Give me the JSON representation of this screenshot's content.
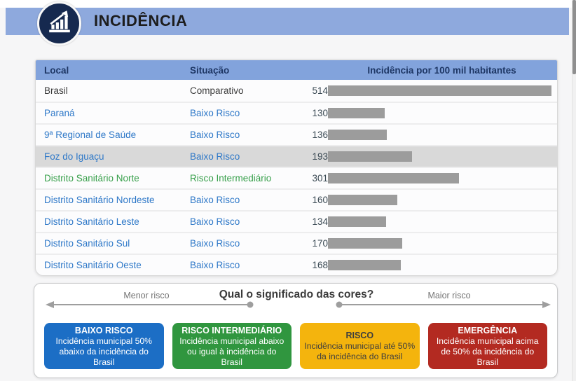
{
  "header": {
    "title": "INCIDÊNCIA",
    "icon": "bar-chart-growth-icon"
  },
  "colors": {
    "banner": "#8EA9DD",
    "table_header_bg": "#82A3DC",
    "table_header_text": "#1E3765",
    "bar": "#9C9C9C",
    "highlight_row": "#D9D9D9",
    "link_blue": "#2E78C8",
    "status_green": "#38A04B"
  },
  "table": {
    "columns": [
      "Local",
      "Situação",
      "Incidência por 100 mil habitantes"
    ],
    "max_value": 514,
    "rows": [
      {
        "local": "Brasil",
        "situacao": "Comparativo",
        "value": 514,
        "tone": "neutral",
        "highlighted": false
      },
      {
        "local": "Paraná",
        "situacao": "Baixo Risco",
        "value": 130,
        "tone": "blue",
        "highlighted": false
      },
      {
        "local": "9ª Regional de Saúde",
        "situacao": "Baixo Risco",
        "value": 136,
        "tone": "blue",
        "highlighted": false
      },
      {
        "local": "Foz do Iguaçu",
        "situacao": "Baixo Risco",
        "value": 193,
        "tone": "blue",
        "highlighted": true
      },
      {
        "local": "Distrito Sanitário Norte",
        "situacao": "Risco Intermediário",
        "value": 301,
        "tone": "green",
        "highlighted": false
      },
      {
        "local": "Distrito Sanitário Nordeste",
        "situacao": "Baixo Risco",
        "value": 160,
        "tone": "blue",
        "highlighted": false
      },
      {
        "local": "Distrito Sanitário Leste",
        "situacao": "Baixo Risco",
        "value": 134,
        "tone": "blue",
        "highlighted": false
      },
      {
        "local": "Distrito Sanitário Sul",
        "situacao": "Baixo Risco",
        "value": 170,
        "tone": "blue",
        "highlighted": false
      },
      {
        "local": "Distrito Sanitário Oeste",
        "situacao": "Baixo Risco",
        "value": 168,
        "tone": "blue",
        "highlighted": false
      }
    ]
  },
  "legend": {
    "title": "Qual o significado das cores?",
    "left_arrow_label": "Menor risco",
    "right_arrow_label": "Maior risco",
    "cards": [
      {
        "title": "BAIXO RISCO",
        "description": "Incidência municipal 50% abaixo da incidência do Brasil",
        "bg": "#1C6EC5",
        "fg": "#FFFFFF"
      },
      {
        "title": "RISCO INTERMEDIÁRIO",
        "description": "Incidência municipal abaixo ou igual à incidência do Brasil",
        "bg": "#30963F",
        "fg": "#FFFFFF"
      },
      {
        "title": "RISCO",
        "description": "Incidência municipal até 50% da incidência do Brasil",
        "bg": "#F4B40D",
        "fg": "#3E3E3E"
      },
      {
        "title": "EMERGÊNCIA",
        "description": "Incidência municipal acima de 50% da incidência do Brasil",
        "bg": "#B32A21",
        "fg": "#FFFFFF"
      }
    ]
  },
  "chart_data": {
    "type": "bar",
    "orientation": "horizontal",
    "title": "Incidência por 100 mil habitantes",
    "categories": [
      "Brasil",
      "Paraná",
      "9ª Regional de Saúde",
      "Foz do Iguaçu",
      "Distrito Sanitário Norte",
      "Distrito Sanitário Nordeste",
      "Distrito Sanitário Leste",
      "Distrito Sanitário Sul",
      "Distrito Sanitário Oeste"
    ],
    "values": [
      514,
      130,
      136,
      193,
      301,
      160,
      134,
      170,
      168
    ],
    "annotations": [
      "Comparativo",
      "Baixo Risco",
      "Baixo Risco",
      "Baixo Risco",
      "Risco Intermediário",
      "Baixo Risco",
      "Baixo Risco",
      "Baixo Risco",
      "Baixo Risco"
    ],
    "xlim": [
      0,
      514
    ],
    "bar_color": "#9C9C9C",
    "grid": false,
    "legend_position": "bottom"
  }
}
